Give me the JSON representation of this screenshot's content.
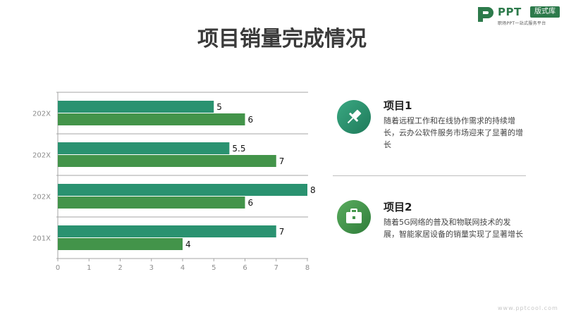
{
  "logo": {
    "name": "PPT",
    "badge": "版式库",
    "tagline": "职场PPT一站式服务平台"
  },
  "title": "项目销量完成情况",
  "chart_data": {
    "type": "bar",
    "orientation": "horizontal",
    "categories": [
      "202X",
      "202X",
      "202X",
      "201X"
    ],
    "series": [
      {
        "values": [
          5,
          5.5,
          8,
          7
        ],
        "color": "#2a9270"
      },
      {
        "values": [
          6,
          7,
          6,
          4
        ],
        "color": "#43944a"
      }
    ],
    "xlim": [
      0,
      8
    ],
    "xticks": [
      "0",
      "1",
      "2",
      "3",
      "4",
      "5",
      "6",
      "7",
      "8"
    ],
    "value_labels": [
      [
        "5",
        "5.5",
        "8",
        "7"
      ],
      [
        "6",
        "7",
        "6",
        "4"
      ]
    ],
    "grid": "horizontal category separators",
    "legend": "none"
  },
  "cards": [
    {
      "title": "项目1",
      "text": "随着远程工作和在线协作需求的持续增长，云办公软件服务市场迎来了显著的增长",
      "icon": "pushpin-icon",
      "color": "#2a9270"
    },
    {
      "title": "项目2",
      "text": "随着5G网络的普及和物联网技术的发展，智能家居设备的销量实现了显著增长",
      "icon": "briefcase-icon",
      "color": "#43944a"
    }
  ],
  "watermark": "www.pptcool.com"
}
